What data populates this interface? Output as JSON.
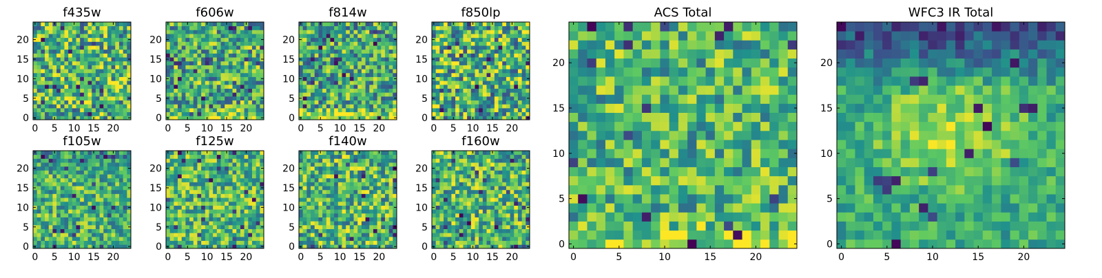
{
  "chart_data": [
    {
      "type": "heatmap",
      "title": "f435w",
      "xticks": [
        "0",
        "5",
        "10",
        "15",
        "20"
      ],
      "yticks": [
        "0",
        "5",
        "10",
        "15",
        "20"
      ],
      "xlim": [
        -0.5,
        24.5
      ],
      "ylim": [
        -0.5,
        24.5
      ],
      "grid_size": 25,
      "colormap": "viridis",
      "value_range": [
        0,
        1
      ],
      "pattern": {
        "base": 0.65,
        "noise": 0.38,
        "seed": 11
      }
    },
    {
      "type": "heatmap",
      "title": "f606w",
      "xticks": [
        "0",
        "5",
        "10",
        "15",
        "20"
      ],
      "yticks": [
        "0",
        "5",
        "10",
        "15",
        "20"
      ],
      "xlim": [
        -0.5,
        24.5
      ],
      "ylim": [
        -0.5,
        24.5
      ],
      "grid_size": 25,
      "colormap": "viridis",
      "value_range": [
        0,
        1
      ],
      "pattern": {
        "base": 0.62,
        "noise": 0.36,
        "seed": 23,
        "bottom_boost": 0.3
      }
    },
    {
      "type": "heatmap",
      "title": "f814w",
      "xticks": [
        "0",
        "5",
        "10",
        "15",
        "20"
      ],
      "yticks": [
        "0",
        "5",
        "10",
        "15",
        "20"
      ],
      "xlim": [
        -0.5,
        24.5
      ],
      "ylim": [
        -0.5,
        24.5
      ],
      "grid_size": 25,
      "colormap": "viridis",
      "value_range": [
        0,
        1
      ],
      "pattern": {
        "base": 0.6,
        "noise": 0.36,
        "seed": 37,
        "bottom_boost": 0.35
      }
    },
    {
      "type": "heatmap",
      "title": "f850lp",
      "xticks": [
        "0",
        "5",
        "10",
        "15",
        "20"
      ],
      "yticks": [
        "0",
        "5",
        "10",
        "15",
        "20"
      ],
      "xlim": [
        -0.5,
        24.5
      ],
      "ylim": [
        -0.5,
        24.5
      ],
      "grid_size": 25,
      "colormap": "viridis",
      "value_range": [
        0,
        1
      ],
      "pattern": {
        "base": 0.64,
        "noise": 0.4,
        "seed": 41
      }
    },
    {
      "type": "heatmap",
      "title": "f105w",
      "xticks": [
        "0",
        "5",
        "10",
        "15",
        "20"
      ],
      "yticks": [
        "0",
        "5",
        "10",
        "15",
        "20"
      ],
      "xlim": [
        -0.5,
        24.5
      ],
      "ylim": [
        -0.5,
        24.5
      ],
      "grid_size": 25,
      "colormap": "viridis",
      "value_range": [
        0,
        1
      ],
      "pattern": {
        "base": 0.66,
        "noise": 0.3,
        "seed": 53,
        "top_drop": 0.15
      }
    },
    {
      "type": "heatmap",
      "title": "f125w",
      "xticks": [
        "0",
        "5",
        "10",
        "15",
        "20"
      ],
      "yticks": [
        "0",
        "5",
        "10",
        "15",
        "20"
      ],
      "xlim": [
        -0.5,
        24.5
      ],
      "ylim": [
        -0.5,
        24.5
      ],
      "grid_size": 25,
      "colormap": "viridis",
      "value_range": [
        0,
        1
      ],
      "pattern": {
        "base": 0.68,
        "noise": 0.3,
        "seed": 67
      }
    },
    {
      "type": "heatmap",
      "title": "f140w",
      "xticks": [
        "0",
        "5",
        "10",
        "15",
        "20"
      ],
      "yticks": [
        "0",
        "5",
        "10",
        "15",
        "20"
      ],
      "xlim": [
        -0.5,
        24.5
      ],
      "ylim": [
        -0.5,
        24.5
      ],
      "grid_size": 25,
      "colormap": "viridis",
      "value_range": [
        0,
        1
      ],
      "pattern": {
        "base": 0.66,
        "noise": 0.34,
        "seed": 79
      }
    },
    {
      "type": "heatmap",
      "title": "f160w",
      "xticks": [
        "0",
        "5",
        "10",
        "15",
        "20"
      ],
      "yticks": [
        "0",
        "5",
        "10",
        "15",
        "20"
      ],
      "xlim": [
        -0.5,
        24.5
      ],
      "ylim": [
        -0.5,
        24.5
      ],
      "grid_size": 25,
      "colormap": "viridis",
      "value_range": [
        0,
        1
      ],
      "pattern": {
        "base": 0.66,
        "noise": 0.34,
        "seed": 83
      }
    },
    {
      "type": "heatmap",
      "title": "ACS Total",
      "xticks": [
        "0",
        "5",
        "10",
        "15",
        "20"
      ],
      "yticks": [
        "0",
        "5",
        "10",
        "15",
        "20"
      ],
      "xlim": [
        -0.5,
        24.5
      ],
      "ylim": [
        -0.5,
        24.5
      ],
      "grid_size": 25,
      "colormap": "viridis",
      "value_range": [
        0,
        1
      ],
      "pattern": {
        "base": 0.66,
        "noise": 0.3,
        "seed": 97,
        "bottom_boost": 0.22
      }
    },
    {
      "type": "heatmap",
      "title": "WFC3 IR Total",
      "xticks": [
        "0",
        "5",
        "10",
        "15",
        "20"
      ],
      "yticks": [
        "0",
        "5",
        "10",
        "15",
        "20"
      ],
      "xlim": [
        -0.5,
        24.5
      ],
      "ylim": [
        -0.5,
        24.5
      ],
      "grid_size": 25,
      "colormap": "viridis",
      "value_range": [
        0,
        1
      ],
      "pattern": {
        "base": 0.62,
        "noise": 0.18,
        "seed": 101,
        "top_drop": 0.42,
        "center_boost": 0.22
      }
    }
  ],
  "colors": {
    "background": "#ffffff",
    "axes": "#000000",
    "viridis": [
      "#440154",
      "#3b528b",
      "#21918c",
      "#5ec962",
      "#fde725"
    ]
  }
}
